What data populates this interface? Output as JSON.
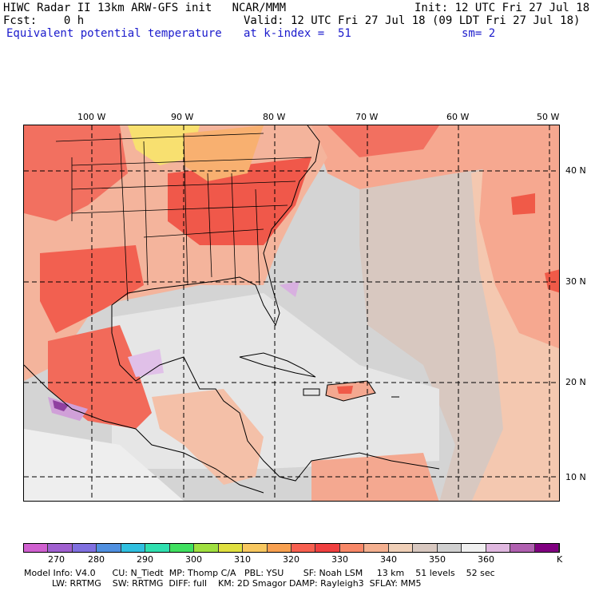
{
  "header": {
    "line1_left": "HIWC Radar II 13km ARW-GFS init   NCAR/MMM",
    "line1_right": "Init: 12 UTC Fri 27 Jul 18",
    "line2_left": "Fcst:    0 h",
    "line2_right": "Valid: 12 UTC Fri 27 Jul 18 (09 LDT Fri 27 Jul 18)",
    "field_name": "Equivalent potential temperature",
    "level": "at k-index =  51",
    "smoothing": "sm= 2"
  },
  "map": {
    "lon_labels": [
      "100 W",
      "90 W",
      "80 W",
      "70 W",
      "60 W",
      "50 W"
    ],
    "lat_labels": [
      "40 N",
      "30 N",
      "20 N",
      "10 N"
    ]
  },
  "colorbar": {
    "colors": [
      "#d060d0",
      "#a060d0",
      "#8070e0",
      "#5090e0",
      "#30c0e0",
      "#30e0b0",
      "#40e060",
      "#a0e040",
      "#e0e040",
      "#f8c860",
      "#f8a050",
      "#f86050",
      "#f04040",
      "#f88868",
      "#f4b090",
      "#f0d0b8",
      "#d8c8c0",
      "#d0d0d0",
      "#f0f0f0",
      "#e0b8e0",
      "#b060b0",
      "#800080"
    ],
    "tick_labels": [
      "270",
      "280",
      "290",
      "300",
      "310",
      "320",
      "330",
      "340",
      "350",
      "360"
    ],
    "unit": "K"
  },
  "footer": {
    "line1": "Model Info: V4.0      CU: N_Tiedt  MP: Thomp C/A   PBL: YSU       SF: Noah LSM     13 km    51 levels    52 sec",
    "line2": "          LW: RRTMG    SW: RRTMG  DIFF: full    KM: 2D Smagor DAMP: Rayleigh3  SFLAY: MM5"
  }
}
